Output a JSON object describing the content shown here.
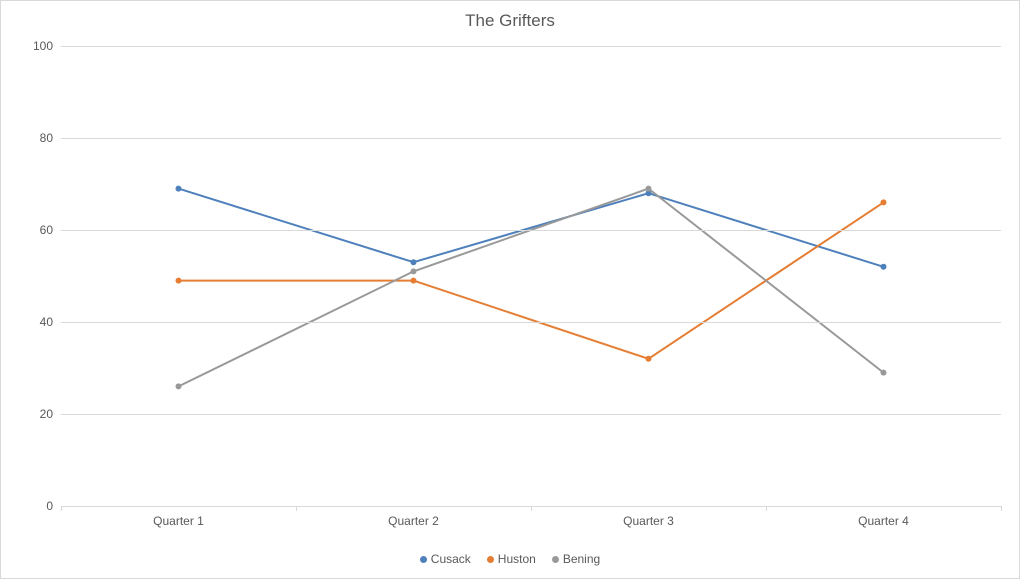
{
  "chart": {
    "type": "line",
    "title": "The Grifters",
    "title_fontsize": 17,
    "title_color": "#595959",
    "background_color": "#ffffff",
    "plot_background_color": "#ffffff",
    "border_color": "#d9d9d9",
    "grid_color": "#d9d9d9",
    "axis_label_color": "#595959",
    "axis_label_fontsize": 12,
    "ylim": [
      0,
      100
    ],
    "ytick_step": 20,
    "yticks": [
      0,
      20,
      40,
      60,
      80,
      100
    ],
    "categories": [
      "Quarter 1",
      "Quarter 2",
      "Quarter 3",
      "Quarter 4"
    ],
    "x_tick_boundaries": true,
    "series": [
      {
        "name": "Cusack",
        "color": "#4e80bc",
        "values": [
          69,
          53,
          68,
          52
        ],
        "line_width": 2,
        "marker": "circle",
        "marker_size": 4
      },
      {
        "name": "Huston",
        "color": "#e57d32",
        "values": [
          49,
          49,
          32,
          66
        ],
        "line_width": 2,
        "marker": "circle",
        "marker_size": 4
      },
      {
        "name": "Bening",
        "color": "#999999",
        "values": [
          26,
          51,
          69,
          29
        ],
        "line_width": 2,
        "marker": "circle",
        "marker_size": 4
      }
    ],
    "legend": {
      "position": "bottom",
      "fontsize": 12,
      "text_color": "#595959",
      "marker_shape": "circle"
    }
  }
}
